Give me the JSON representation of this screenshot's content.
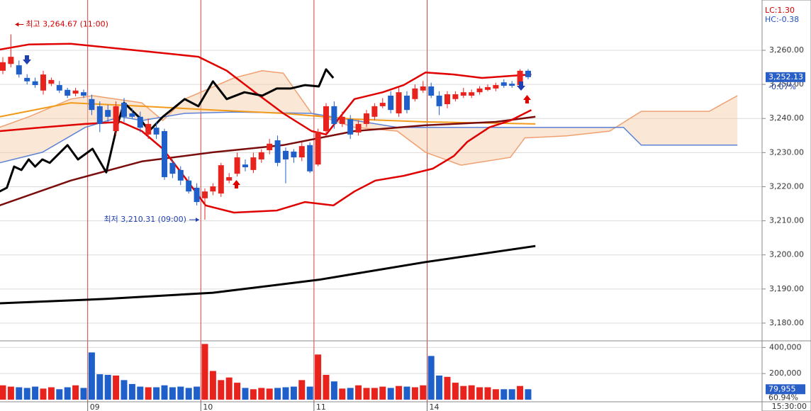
{
  "chart_data": {
    "type": "candlestick",
    "lc": "LC:1.30",
    "hc": "HC:-0.38",
    "categories": [
      null,
      null,
      null,
      null,
      null,
      null,
      null,
      null,
      null,
      null,
      null,
      "09",
      null,
      null,
      null,
      null,
      null,
      null,
      null,
      null,
      null,
      null,
      null,
      null,
      null,
      "10",
      null,
      null,
      null,
      null,
      null,
      null,
      null,
      null,
      null,
      null,
      null,
      null,
      null,
      "11",
      null,
      null,
      null,
      null,
      null,
      null,
      null,
      null,
      null,
      null,
      null,
      null,
      null,
      "14",
      null,
      null,
      null,
      null,
      null,
      null,
      null,
      null,
      null,
      null,
      null,
      null
    ],
    "open": [
      3254.0,
      3256.0,
      3255.6,
      3251.9,
      3250.9,
      3248.2,
      3250.2,
      3249.8,
      3248.4,
      3247.3,
      3247.7,
      3245.7,
      3243.6,
      3242.5,
      3236.3,
      3244.6,
      3241.5,
      3240.5,
      3235.3,
      3237.3,
      3236.3,
      3227.0,
      3224.9,
      3221.8,
      3219.7,
      3216.6,
      3218.6,
      3218.0,
      3221.8,
      3223.8,
      3226.5,
      3224.9,
      3228.0,
      3230.7,
      3233.6,
      3230.5,
      3230.3,
      3228.6,
      3232.2,
      3226.5,
      3236.3,
      3243.6,
      3238.4,
      3239.8,
      3235.9,
      3238.4,
      3240.5,
      3243.6,
      3246.7,
      3241.5,
      3246.7,
      3245.7,
      3248.2,
      3249.4,
      3246.7,
      3244.2,
      3245.7,
      3246.7,
      3246.7,
      3247.7,
      3248.4,
      3248.8,
      3250.6,
      3250.2,
      3249.8,
      3254.0
    ],
    "high": [
      3258,
      3264.67,
      3257,
      3253,
      3252,
      3254,
      3252,
      3251,
      3249,
      3249,
      3248.5,
      3247,
      3245,
      3244,
      3245,
      3246,
      3243,
      3242,
      3240,
      3239,
      3237,
      3228,
      3226,
      3223,
      3221,
      3219.5,
      3221,
      3227,
      3224,
      3230,
      3228,
      3230,
      3231,
      3234,
      3235,
      3231.5,
      3231,
      3233,
      3233,
      3237,
      3244.5,
      3245,
      3242,
      3241,
      3239.5,
      3242.5,
      3244.5,
      3246,
      3248,
      3249,
      3248,
      3250,
      3251,
      3250.5,
      3248,
      3248,
      3248,
      3249,
      3248.5,
      3249.5,
      3250,
      3250.5,
      3251.5,
      3251,
      3254.5,
      3254.5
    ],
    "low": [
      3253,
      3255,
      3252,
      3250,
      3249,
      3247,
      3249.5,
      3247.5,
      3246,
      3246.5,
      3246,
      3241,
      3236,
      3239,
      3235,
      3239,
      3240,
      3236,
      3234,
      3234,
      3222,
      3222.5,
      3220.5,
      3218,
      3214.5,
      3210.31,
      3217.5,
      3217,
      3221,
      3223,
      3224.5,
      3224,
      3227,
      3229.5,
      3226,
      3221,
      3227,
      3227.5,
      3224,
      3226,
      3235,
      3237,
      3237.5,
      3234,
      3235,
      3237.5,
      3239.5,
      3243,
      3241.5,
      3240.5,
      3241.5,
      3245,
      3247.5,
      3246,
      3241,
      3243,
      3245,
      3246,
      3246,
      3247,
      3248,
      3248,
      3249,
      3249,
      3249.5,
      3251.5
    ],
    "close": [
      3256.5,
      3258.1,
      3252.9,
      3250.9,
      3249.8,
      3252.9,
      3251.3,
      3248.2,
      3246.7,
      3248.2,
      3246.7,
      3242.5,
      3238.4,
      3240.5,
      3243.6,
      3240.5,
      3240.5,
      3237.3,
      3238.4,
      3235.3,
      3222.8,
      3223.8,
      3221.8,
      3218.6,
      3215.5,
      3218.6,
      3220.1,
      3226.3,
      3222.8,
      3228.6,
      3225.7,
      3228.6,
      3230.1,
      3232.6,
      3227.0,
      3228.0,
      3228.6,
      3231.9,
      3224.5,
      3236.1,
      3243.6,
      3238.4,
      3240.5,
      3235.3,
      3238.4,
      3241.5,
      3243.6,
      3244.6,
      3242.5,
      3247.7,
      3242.5,
      3248.8,
      3249.4,
      3246.7,
      3243.6,
      3247.1,
      3247.1,
      3247.7,
      3247.7,
      3248.8,
      3249.2,
      3249.8,
      3249.6,
      3249.6,
      3254.0,
      3252.13
    ],
    "up_color": "#e8231e",
    "down_color": "#1f5fc9",
    "xlim": [
      -0.35,
      93.95
    ],
    "ylim": [
      3175,
      3274.75
    ],
    "yticks": [
      {
        "value": 3260,
        "label": "3,260.00"
      },
      {
        "value": 3250,
        "label": "3,250.00"
      },
      {
        "value": 3240,
        "label": "3,240.00"
      },
      {
        "value": 3230,
        "label": "3,230.00"
      },
      {
        "value": 3220,
        "label": "3,220.00"
      },
      {
        "value": 3210,
        "label": "3,210.00"
      },
      {
        "value": 3200,
        "label": "3,200.00"
      },
      {
        "value": 3190,
        "label": "3,190.00"
      },
      {
        "value": 3180,
        "label": "3,180.00"
      }
    ],
    "grid": true,
    "cloud": {
      "fill": "#f7c9a3",
      "span_a": {
        "color": "#f0a070",
        "x": [
          -0.4,
          3.2,
          8.4,
          11.1,
          17.2,
          19.8,
          22.5,
          28.6,
          32.1,
          34.7,
          38.2,
          43.5,
          48.8,
          52.3,
          56.7,
          62.8,
          64.6,
          69.8,
          75.1,
          79,
          87.4,
          90.9
        ],
        "values": [
          3237.4,
          3240.5,
          3245.7,
          3246.7,
          3244.6,
          3239.4,
          3245.7,
          3251.9,
          3254.0,
          3253.3,
          3241.5,
          3237.4,
          3236.3,
          3230.1,
          3226.3,
          3228.6,
          3234.3,
          3234.9,
          3236.3,
          3242.1,
          3242.1,
          3246.7
        ]
      },
      "span_b": {
        "color": "#5b82d6",
        "x": [
          -0.4,
          4.9,
          10.2,
          14.6,
          17.2,
          22.5,
          28.6,
          38.2,
          48.8,
          76.8,
          79,
          90.9
        ],
        "values": [
          3227.0,
          3230.1,
          3237.4,
          3240.5,
          3239.4,
          3241.5,
          3241.9,
          3241.5,
          3237.4,
          3237.4,
          3232.2,
          3232.2
        ]
      }
    },
    "overlays": [
      {
        "color": "#000000",
        "width": 3,
        "x": [
          -0.4,
          12.8,
          26,
          39.1,
          52.3,
          65.9
        ],
        "values": [
          3185.8,
          3187.1,
          3188.9,
          3192.7,
          3197.9,
          3202.6
        ]
      },
      {
        "color": "#f29a1a",
        "width": 2,
        "x": [
          -0.4,
          8.4,
          17.2,
          26,
          34.7,
          43.5,
          52.3,
          65.9
        ],
        "values": [
          3240.5,
          3244.6,
          3243.6,
          3242.5,
          3241.5,
          3239.8,
          3239.0,
          3238.4
        ]
      },
      {
        "color": "#7a0c0c",
        "width": 2.5,
        "x": [
          -0.4,
          8.4,
          17.2,
          26,
          34.7,
          43.5,
          52.3,
          61,
          65.9
        ],
        "values": [
          3214.5,
          3221.8,
          3227.4,
          3230.1,
          3232.2,
          3236.3,
          3238.0,
          3239.0,
          3240.5
        ]
      },
      {
        "color": "#e00000",
        "width": 2.5,
        "x": [
          -0.4,
          3.2,
          8.4,
          17.2,
          24.2,
          27.7,
          31.2,
          34.7,
          38.2,
          40,
          43.5,
          47,
          49.6,
          52.3,
          55.8,
          59.3,
          62.8,
          65.4
        ],
        "values": [
          3260.2,
          3261.7,
          3261.9,
          3259.8,
          3258.1,
          3254.0,
          3247.7,
          3241.5,
          3236.3,
          3235.3,
          3245.7,
          3247.7,
          3249.8,
          3253.5,
          3252.9,
          3251.9,
          3252.5,
          3252.9
        ]
      },
      {
        "color": "#e00000",
        "width": 2.5,
        "x": [
          -0.4,
          4.9,
          10.2,
          14.6,
          17.2,
          19.8,
          22.5,
          25.1,
          28.6,
          33.9,
          37.4,
          40.9,
          43.5,
          46.1,
          49.6,
          53.2,
          55.8,
          57.5,
          60.2,
          62.8,
          65.4
        ],
        "values": [
          3236.3,
          3237.4,
          3238.4,
          3239.0,
          3236.3,
          3231.1,
          3222.8,
          3214.5,
          3212.4,
          3213.0,
          3215.5,
          3214.5,
          3218.6,
          3221.8,
          3223.2,
          3225.3,
          3229.0,
          3233.2,
          3237.4,
          3239.4,
          3242.5
        ]
      },
      {
        "color": "#000000",
        "width": 3,
        "x": [
          -0.4,
          0.5,
          1.4,
          2.3,
          3.2,
          4,
          4.9,
          5.8,
          8,
          9.3,
          11.1,
          12.8,
          14.1,
          15,
          16.8,
          18.1,
          19.8,
          22.5,
          24.2,
          26,
          27.7,
          29.9,
          32.1,
          33.9,
          35.6,
          37.4,
          39.1,
          40,
          40.9
        ],
        "values": [
          3218.6,
          3219.7,
          3225.9,
          3224.9,
          3228.0,
          3225.9,
          3228.0,
          3227.0,
          3232.2,
          3228.0,
          3231.1,
          3224.2,
          3237.4,
          3244.6,
          3240.5,
          3236.3,
          3240.5,
          3245.7,
          3243.6,
          3250.9,
          3245.7,
          3247.7,
          3246.7,
          3248.8,
          3248.8,
          3249.8,
          3249.4,
          3254.4,
          3251.9
        ]
      }
    ],
    "high_note": "최고 3,264.67 (11:00)",
    "low_note": "최저 3,210.31 (09:00)",
    "last_price": {
      "value": 3252.13,
      "label": "3,252.13"
    },
    "change": "-0.07%",
    "volume": {
      "values": [
        110000,
        100000,
        95000,
        90000,
        100000,
        85000,
        95000,
        80000,
        95000,
        110000,
        90000,
        362000,
        195000,
        190000,
        185000,
        150000,
        120000,
        100000,
        95000,
        95000,
        110000,
        95000,
        100000,
        90000,
        100000,
        427000,
        220000,
        150000,
        170000,
        130000,
        90000,
        80000,
        90000,
        85000,
        90000,
        95000,
        100000,
        150000,
        100000,
        346000,
        190000,
        140000,
        85000,
        90000,
        110000,
        90000,
        90000,
        100000,
        90000,
        105000,
        100000,
        95000,
        110000,
        335000,
        185000,
        175000,
        130000,
        105000,
        110000,
        95000,
        95000,
        80000,
        80000,
        80000,
        105000,
        80000
      ],
      "ylim": [
        0,
        440000
      ],
      "yticks": [
        {
          "value": 400000,
          "label": "400,000"
        },
        {
          "value": 200000,
          "label": "200,000"
        }
      ],
      "last": {
        "value": 79955,
        "label": "79,955"
      },
      "ratio": "60.94%"
    },
    "time": "15:30:00"
  }
}
